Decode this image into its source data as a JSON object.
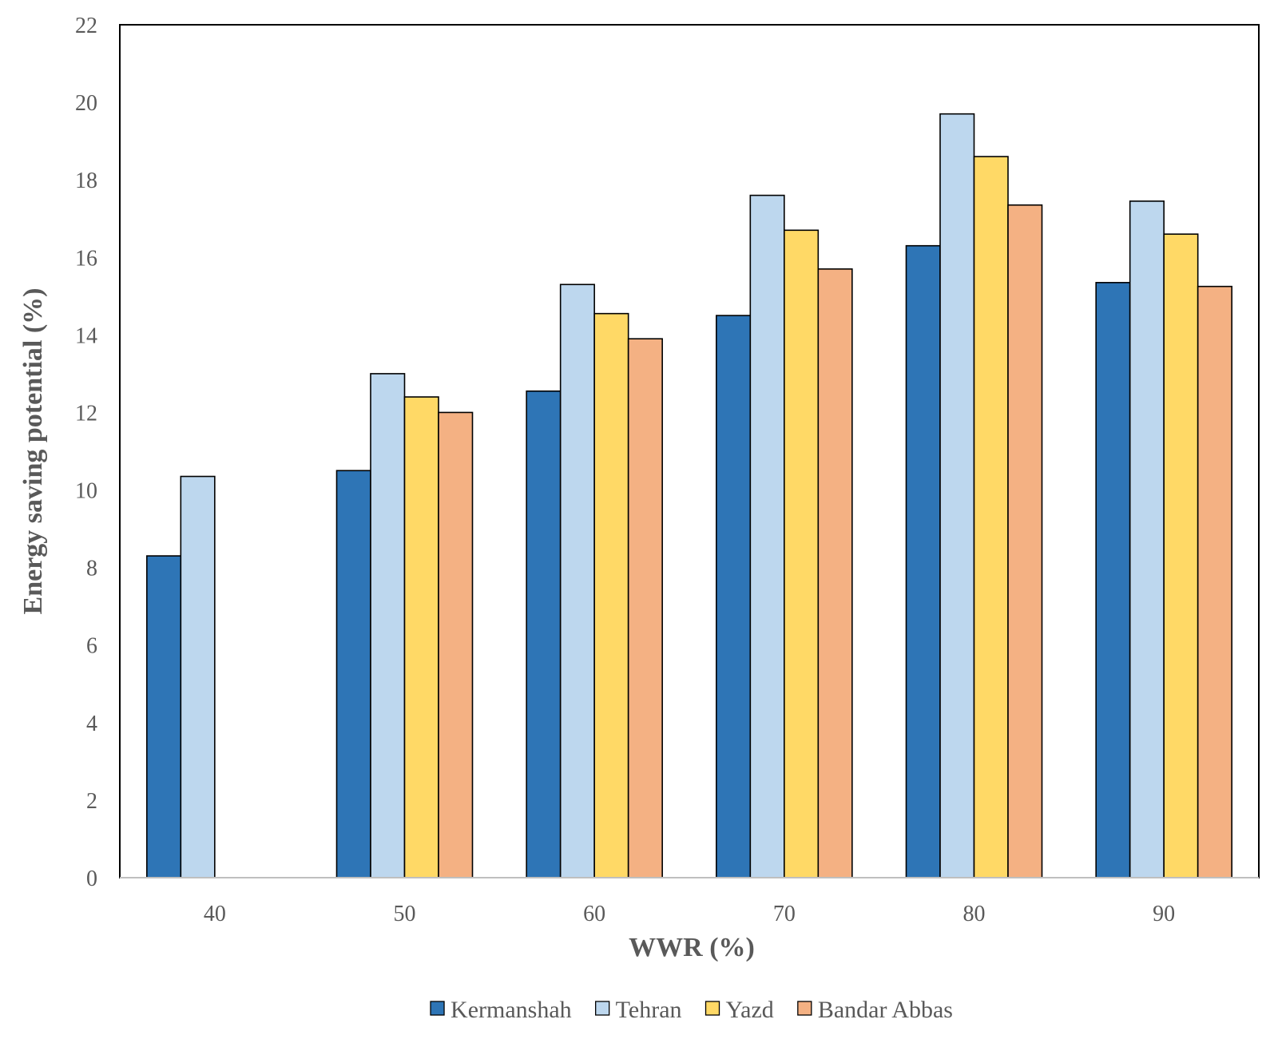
{
  "chart_data": {
    "type": "bar",
    "title": "",
    "xlabel": "WWR (%)",
    "ylabel": "Energy saving potential (%)",
    "categories": [
      "40",
      "50",
      "60",
      "70",
      "80",
      "90"
    ],
    "ylim": [
      0,
      22
    ],
    "yticks": [
      0,
      2,
      4,
      6,
      8,
      10,
      12,
      14,
      16,
      18,
      20,
      22
    ],
    "grid": false,
    "legend_position": "bottom",
    "series": [
      {
        "name": "Kermanshah",
        "color": "#2E75B6",
        "values": [
          8.3,
          10.5,
          12.55,
          14.5,
          16.3,
          15.35
        ]
      },
      {
        "name": "Tehran",
        "color": "#BDD7EE",
        "values": [
          10.35,
          13.0,
          15.3,
          17.6,
          19.7,
          17.45
        ]
      },
      {
        "name": "Yazd",
        "color": "#FFD966",
        "values": [
          null,
          12.4,
          14.55,
          16.7,
          18.6,
          16.6
        ]
      },
      {
        "name": "Bandar Abbas",
        "color": "#F4B183",
        "values": [
          null,
          12.0,
          13.9,
          15.7,
          17.35,
          15.25
        ]
      }
    ]
  }
}
